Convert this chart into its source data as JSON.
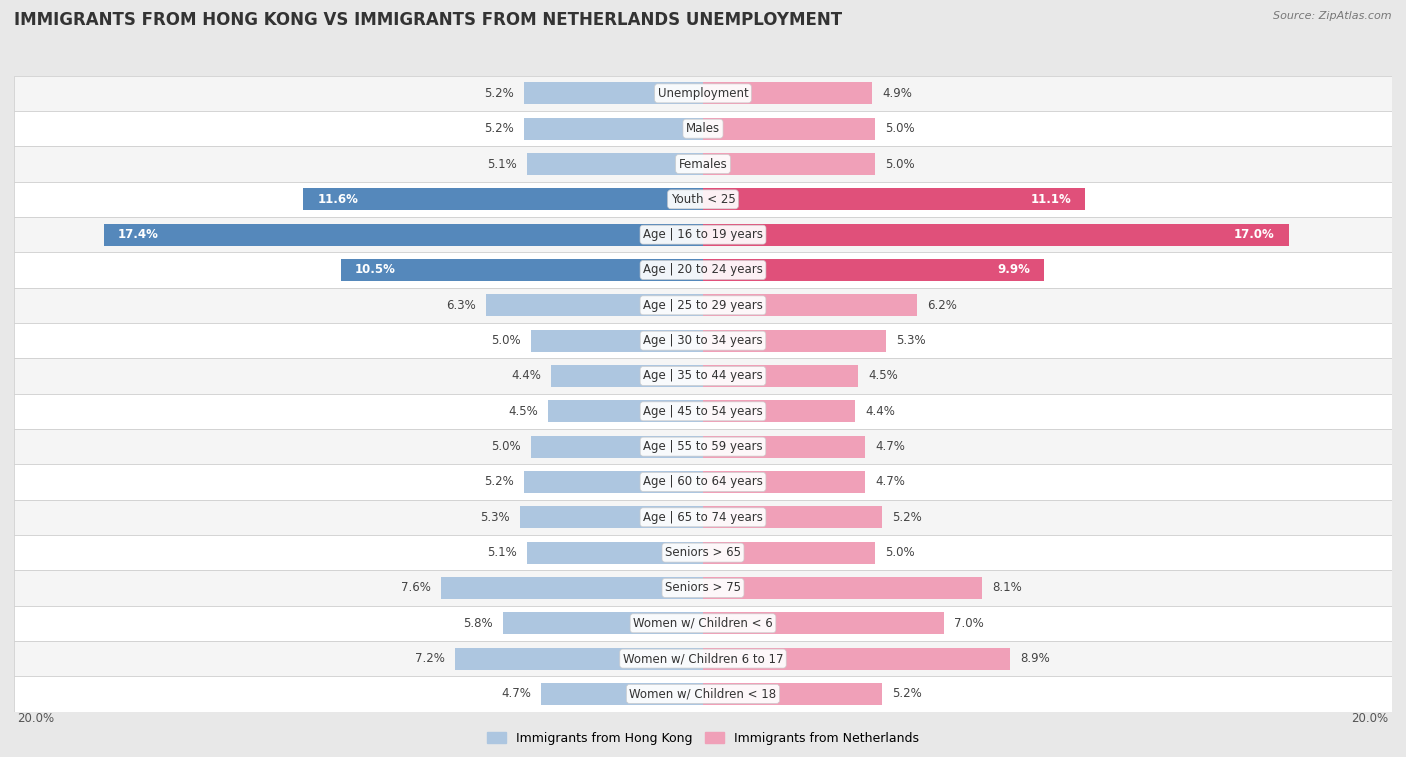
{
  "title": "IMMIGRANTS FROM HONG KONG VS IMMIGRANTS FROM NETHERLANDS UNEMPLOYMENT",
  "source": "Source: ZipAtlas.com",
  "categories": [
    "Unemployment",
    "Males",
    "Females",
    "Youth < 25",
    "Age | 16 to 19 years",
    "Age | 20 to 24 years",
    "Age | 25 to 29 years",
    "Age | 30 to 34 years",
    "Age | 35 to 44 years",
    "Age | 45 to 54 years",
    "Age | 55 to 59 years",
    "Age | 60 to 64 years",
    "Age | 65 to 74 years",
    "Seniors > 65",
    "Seniors > 75",
    "Women w/ Children < 6",
    "Women w/ Children 6 to 17",
    "Women w/ Children < 18"
  ],
  "hk_values": [
    5.2,
    5.2,
    5.1,
    11.6,
    17.4,
    10.5,
    6.3,
    5.0,
    4.4,
    4.5,
    5.0,
    5.2,
    5.3,
    5.1,
    7.6,
    5.8,
    7.2,
    4.7
  ],
  "nl_values": [
    4.9,
    5.0,
    5.0,
    11.1,
    17.0,
    9.9,
    6.2,
    5.3,
    4.5,
    4.4,
    4.7,
    4.7,
    5.2,
    5.0,
    8.1,
    7.0,
    8.9,
    5.2
  ],
  "hk_color": "#adc6e0",
  "nl_color": "#f0a0b8",
  "hk_label": "Immigrants from Hong Kong",
  "nl_label": "Immigrants from Netherlands",
  "hk_highlight_color": "#5588bb",
  "nl_highlight_color": "#e0507a",
  "max_val": 20.0,
  "background_color": "#e8e8e8",
  "row_bg_even": "#f5f5f5",
  "row_bg_odd": "#ffffff",
  "title_fontsize": 12,
  "label_fontsize": 8.5,
  "value_fontsize": 8.5,
  "highlight_threshold": 9.0
}
